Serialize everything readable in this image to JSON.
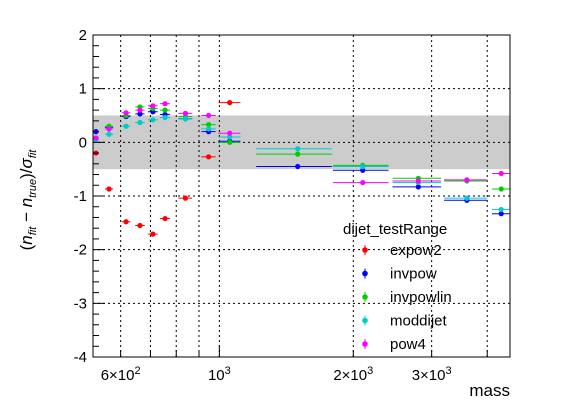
{
  "chart_data": {
    "type": "scatter",
    "xlabel": "mass",
    "ylabel": "(n_fit − n_true)/σ_fit",
    "xscale": "log",
    "xlim": [
      520,
      4500
    ],
    "ylim": [
      -4,
      2
    ],
    "x_ticks": [
      {
        "value": 600,
        "base": "6×10",
        "exp": "2"
      },
      {
        "value": 1000,
        "base": "10",
        "exp": "3"
      },
      {
        "value": 2000,
        "base": "2×10",
        "exp": "3"
      },
      {
        "value": 3000,
        "base": "3×10",
        "exp": "3"
      }
    ],
    "y_ticks": [
      {
        "value": 2,
        "label": "2"
      },
      {
        "value": 1,
        "label": "1"
      },
      {
        "value": 0,
        "label": "0"
      },
      {
        "value": -1,
        "label": "-1"
      },
      {
        "value": -2,
        "label": "-2"
      },
      {
        "value": -3,
        "label": "-3"
      },
      {
        "value": -4,
        "label": "-4"
      }
    ],
    "band": [
      -0.5,
      0.5
    ],
    "band_color": "#cccccc",
    "grid": true,
    "legend_title": "dijet_testRange",
    "legend_position": "bottom-right",
    "series": [
      {
        "name": "expow2",
        "color": "#ff0000",
        "x": [
          528,
          565,
          617,
          663,
          709,
          755,
          839,
          946,
          1055
        ],
        "xerr_lo": [
          8,
          12,
          14,
          16,
          18,
          20,
          30,
          35,
          60
        ],
        "xerr_hi": [
          8,
          12,
          14,
          16,
          18,
          20,
          30,
          35,
          60
        ],
        "y": [
          -0.2,
          -0.87,
          -1.48,
          -1.55,
          -1.71,
          -1.42,
          -1.04,
          -0.27,
          0.74
        ]
      },
      {
        "name": "invpow",
        "color": "#0000ff",
        "x": [
          528,
          565,
          617,
          663,
          709,
          755,
          839,
          946,
          1055,
          1500,
          2100,
          2800,
          3600,
          4300
        ],
        "xerr_lo": [
          8,
          12,
          14,
          16,
          18,
          20,
          30,
          35,
          60,
          290,
          300,
          350,
          400,
          200
        ],
        "xerr_hi": [
          8,
          12,
          14,
          16,
          18,
          20,
          30,
          35,
          60,
          290,
          300,
          350,
          400,
          200
        ],
        "y": [
          0.2,
          0.28,
          0.48,
          0.53,
          0.57,
          0.52,
          0.44,
          0.2,
          0.02,
          -0.45,
          -0.52,
          -0.83,
          -1.08,
          -1.33
        ]
      },
      {
        "name": "invpowlin",
        "color": "#00cc00",
        "x": [
          528,
          565,
          617,
          663,
          709,
          755,
          839,
          946,
          1055,
          1500,
          2100,
          2800,
          3600,
          4300
        ],
        "xerr_lo": [
          8,
          12,
          14,
          16,
          18,
          20,
          30,
          35,
          60,
          290,
          300,
          350,
          400,
          200
        ],
        "xerr_hi": [
          8,
          12,
          14,
          16,
          18,
          20,
          30,
          35,
          60,
          290,
          300,
          350,
          400,
          200
        ],
        "y": [
          0.08,
          0.3,
          0.5,
          0.66,
          0.63,
          0.6,
          0.48,
          0.33,
          0.0,
          -0.22,
          -0.43,
          -0.67,
          -0.72,
          -0.87
        ]
      },
      {
        "name": "moddijet",
        "color": "#00cccc",
        "x": [
          528,
          565,
          617,
          663,
          709,
          755,
          839,
          946,
          1055,
          1500,
          2100,
          2800,
          3600,
          4300
        ],
        "xerr_lo": [
          8,
          12,
          14,
          16,
          18,
          20,
          30,
          35,
          60,
          290,
          300,
          350,
          400,
          200
        ],
        "xerr_hi": [
          8,
          12,
          14,
          16,
          18,
          20,
          30,
          35,
          60,
          290,
          300,
          350,
          400,
          200
        ],
        "y": [
          0.05,
          0.15,
          0.3,
          0.37,
          0.42,
          0.46,
          0.44,
          0.25,
          0.1,
          -0.12,
          -0.45,
          -0.75,
          -1.04,
          -1.25
        ]
      },
      {
        "name": "pow4",
        "color": "#ff00ff",
        "x": [
          528,
          565,
          617,
          663,
          709,
          755,
          839,
          946,
          1055,
          2100,
          2800,
          3600,
          4300
        ],
        "xerr_lo": [
          8,
          12,
          14,
          16,
          18,
          20,
          30,
          35,
          60,
          300,
          350,
          400,
          200
        ],
        "xerr_hi": [
          8,
          12,
          14,
          16,
          18,
          20,
          30,
          35,
          60,
          300,
          350,
          400,
          200
        ],
        "y": [
          0.08,
          0.25,
          0.55,
          0.6,
          0.68,
          0.72,
          0.54,
          0.5,
          0.17,
          -0.75,
          -0.72,
          -0.7,
          -0.58
        ]
      }
    ]
  }
}
